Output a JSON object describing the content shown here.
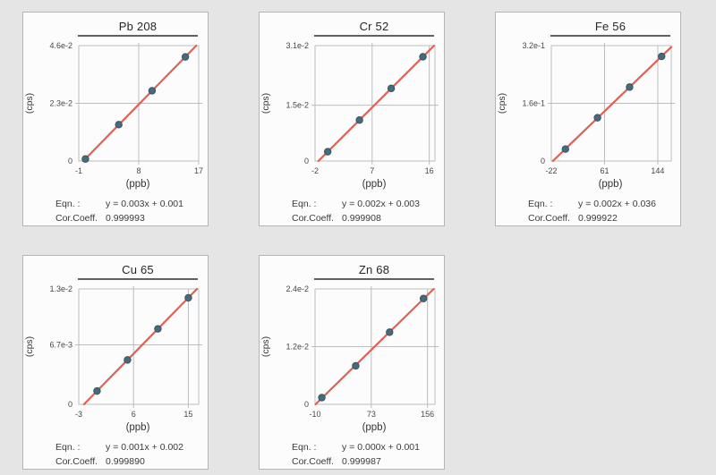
{
  "page": {
    "background": "#e5e5e6"
  },
  "colors": {
    "panel_bg": "#fcfcfc",
    "panel_border": "#b5b5b5",
    "title_rule": "#606060",
    "grid": "#babec0",
    "line": "#dd6156",
    "point_fill": "#476b7c",
    "point_stroke": "#36545f",
    "tick_text": "#474747",
    "text": "#3b3b3b"
  },
  "labels": {
    "eqn": "Eqn. :",
    "cor": "Cor.Coeff."
  },
  "chart_data": [
    {
      "type": "scatter",
      "title": "Pb 208",
      "xlabel": "(ppb)",
      "ylabel": "(cps)",
      "xlim": [
        -1,
        17
      ],
      "ylim": [
        0,
        0.046
      ],
      "xticks": [
        {
          "v": -1,
          "label": "-1"
        },
        {
          "v": 8,
          "label": "8"
        },
        {
          "v": 17,
          "label": "17"
        }
      ],
      "yticks": [
        {
          "v": 0,
          "label": "0"
        },
        {
          "v": 0.023,
          "label": "2.3e-2"
        },
        {
          "v": 0.046,
          "label": "4.6e-2"
        }
      ],
      "x": [
        0,
        5,
        10,
        15
      ],
      "y": [
        0.0008,
        0.0145,
        0.028,
        0.0415
      ],
      "fit": {
        "equation": "y = 0.003x + 0.001",
        "cor_coeff": "0.999993"
      }
    },
    {
      "type": "scatter",
      "title": "Cr 52",
      "xlabel": "(ppb)",
      "ylabel": "(cps)",
      "xlim": [
        -2,
        16.9
      ],
      "ylim": [
        0,
        0.031
      ],
      "xticks": [
        {
          "v": -2,
          "label": "-2"
        },
        {
          "v": 7,
          "label": "7"
        },
        {
          "v": 16,
          "label": "16"
        }
      ],
      "yticks": [
        {
          "v": 0,
          "label": "0"
        },
        {
          "v": 0.015,
          "label": "1.5e-2"
        },
        {
          "v": 0.031,
          "label": "3.1e-2"
        }
      ],
      "x": [
        0,
        5,
        10,
        15
      ],
      "y": [
        0.0025,
        0.011,
        0.0195,
        0.028
      ],
      "fit": {
        "equation": "y = 0.002x + 0.003",
        "cor_coeff": "0.999908"
      }
    },
    {
      "type": "scatter",
      "title": "Fe 56",
      "xlabel": "(ppb)",
      "ylabel": "(cps)",
      "xlim": [
        -22,
        165
      ],
      "ylim": [
        0,
        0.32
      ],
      "xticks": [
        {
          "v": -22,
          "label": "-22"
        },
        {
          "v": 61,
          "label": "61"
        },
        {
          "v": 144,
          "label": "144"
        }
      ],
      "yticks": [
        {
          "v": 0,
          "label": "0"
        },
        {
          "v": 0.16,
          "label": "1.6e-1"
        },
        {
          "v": 0.32,
          "label": "3.2e-1"
        }
      ],
      "x": [
        0,
        50,
        100,
        150
      ],
      "y": [
        0.033,
        0.12,
        0.205,
        0.29
      ],
      "fit": {
        "equation": "y = 0.002x + 0.036",
        "cor_coeff": "0.999922"
      }
    },
    {
      "type": "scatter",
      "title": "Cu 65",
      "xlabel": "(ppb)",
      "ylabel": "(cps)",
      "xlim": [
        -3,
        16.7
      ],
      "ylim": [
        0,
        0.013
      ],
      "xticks": [
        {
          "v": -3,
          "label": "-3"
        },
        {
          "v": 6,
          "label": "6"
        },
        {
          "v": 15,
          "label": "15"
        }
      ],
      "yticks": [
        {
          "v": 0,
          "label": "0"
        },
        {
          "v": 0.0067,
          "label": "6.7e-3"
        },
        {
          "v": 0.013,
          "label": "1.3e-2"
        }
      ],
      "x": [
        0,
        5,
        10,
        15
      ],
      "y": [
        0.0015,
        0.005,
        0.0085,
        0.012
      ],
      "fit": {
        "equation": "y = 0.001x + 0.002",
        "cor_coeff": "0.999890"
      }
    },
    {
      "type": "scatter",
      "title": "Zn 68",
      "xlabel": "(ppb)",
      "ylabel": "(cps)",
      "xlim": [
        -10,
        167
      ],
      "ylim": [
        0,
        0.024
      ],
      "xticks": [
        {
          "v": -10,
          "label": "-10"
        },
        {
          "v": 73,
          "label": "73"
        },
        {
          "v": 156,
          "label": "156"
        }
      ],
      "yticks": [
        {
          "v": 0,
          "label": "0"
        },
        {
          "v": 0.012,
          "label": "1.2e-2"
        },
        {
          "v": 0.024,
          "label": "2.4e-2"
        }
      ],
      "x": [
        0,
        50,
        100,
        150
      ],
      "y": [
        0.0014,
        0.008,
        0.015,
        0.022
      ],
      "fit": {
        "equation": "y = 0.000x + 0.001",
        "cor_coeff": "0.999987"
      }
    }
  ]
}
